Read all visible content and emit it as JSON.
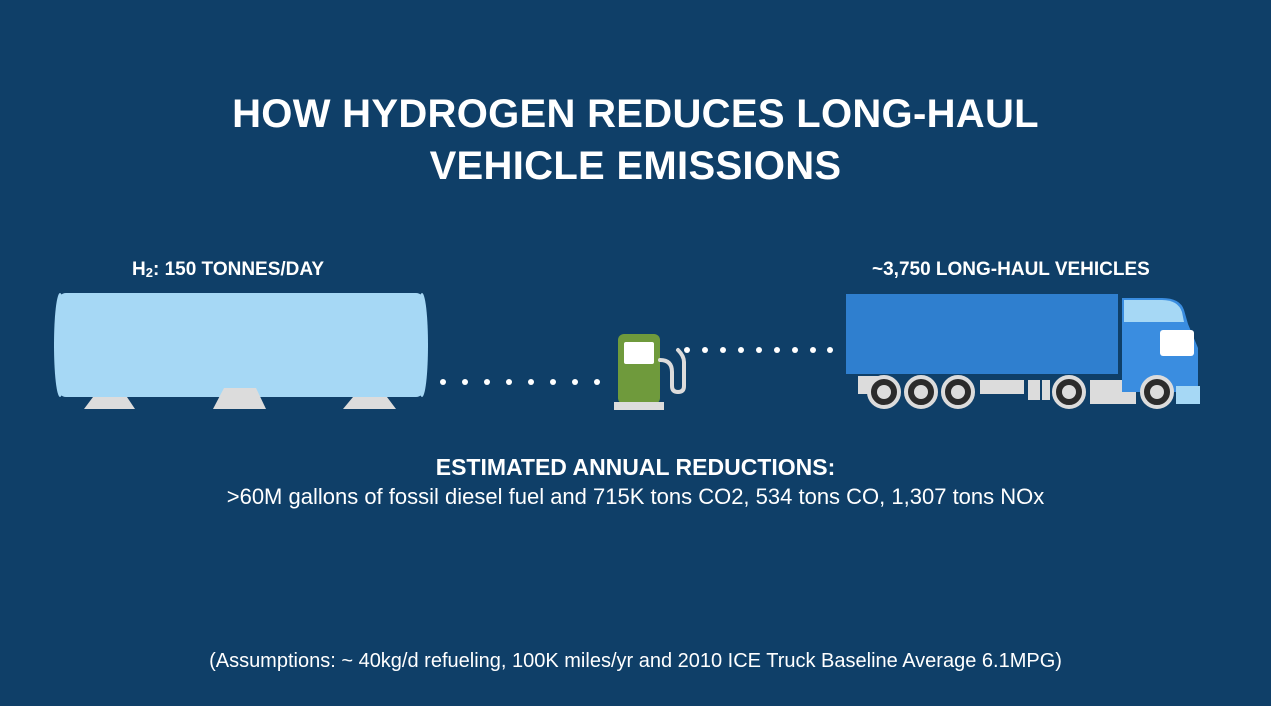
{
  "title": {
    "line1": "HOW HYDROGEN REDUCES LONG-HAUL",
    "line2": "VEHICLE EMISSIONS"
  },
  "supply": {
    "label_prefix": "H",
    "label_sub": "2",
    "label_rest": ": 150 TONNES/DAY"
  },
  "vehicles": {
    "label": "~3,750 LONG-HAUL VEHICLES"
  },
  "reductions": {
    "heading": "ESTIMATED ANNUAL REDUCTIONS:",
    "detail": ">60M gallons of fossil diesel fuel and 715K tons CO2, 534 tons CO, 1,307 tons NOx"
  },
  "assumptions": "(Assumptions: ~ 40kg/d refueling, 100K miles/yr and 2010 ICE Truck Baseline Average 6.1MPG)",
  "colors": {
    "background": "#0f3f68",
    "tank": "#a6d8f5",
    "tank_feet": "#dcdcdc",
    "pump": "#6f9a3c",
    "truck_trailer": "#2f7fcf",
    "truck_cab": "#3a8de0",
    "dots": "#ffffff"
  },
  "icons": [
    "hydrogen-tank-icon",
    "fuel-pump-icon",
    "truck-icon"
  ]
}
